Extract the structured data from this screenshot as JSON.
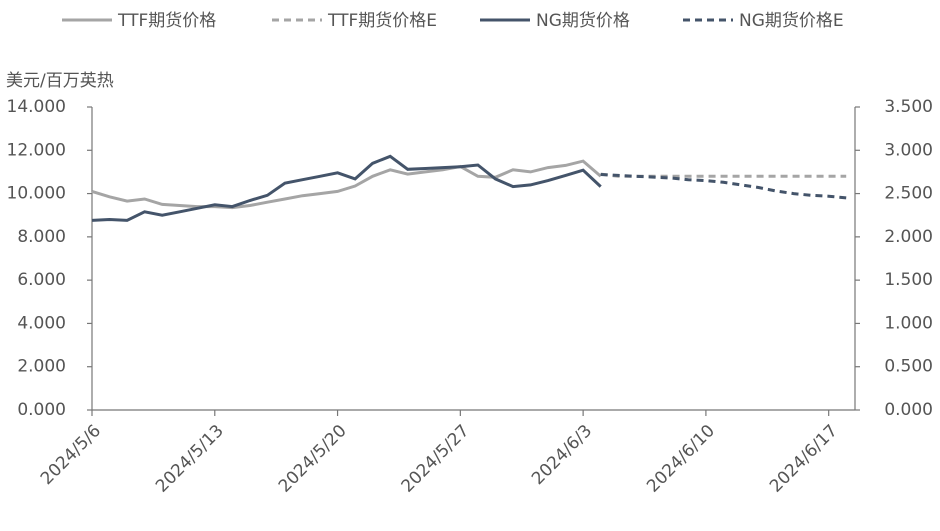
{
  "chart_data": {
    "type": "line",
    "y_label": "美元/百万英热",
    "categories": [
      "2024/5/6",
      null,
      null,
      null,
      null,
      null,
      null,
      "2024/5/13",
      null,
      null,
      null,
      null,
      null,
      null,
      "2024/5/20",
      null,
      null,
      null,
      null,
      null,
      null,
      "2024/5/27",
      null,
      null,
      null,
      null,
      null,
      null,
      "2024/6/3",
      null,
      null,
      null,
      null,
      null,
      null,
      "2024/6/10",
      null,
      null,
      null,
      null,
      null,
      null,
      "2024/6/17",
      null
    ],
    "series": [
      {
        "name": "TTF期货价格",
        "color": "#a5a5a5",
        "dash": false,
        "axis": "y",
        "values": [
          10.1,
          9.85,
          9.65,
          9.75,
          9.5,
          9.45,
          9.4,
          9.4,
          9.35,
          9.45,
          9.6,
          9.75,
          9.9,
          10.0,
          10.1,
          10.35,
          10.8,
          11.1,
          10.9,
          11.0,
          11.1,
          11.25,
          10.8,
          10.75,
          11.1,
          11.0,
          11.2,
          11.3,
          11.5,
          10.8,
          null,
          null,
          null,
          null,
          null,
          null,
          null,
          null,
          null,
          null,
          null,
          null,
          null,
          null
        ]
      },
      {
        "name": "TTF期货价格E",
        "color": "#a5a5a5",
        "dash": true,
        "axis": "y",
        "values": [
          null,
          null,
          null,
          null,
          null,
          null,
          null,
          null,
          null,
          null,
          null,
          null,
          null,
          null,
          null,
          null,
          null,
          null,
          null,
          null,
          null,
          null,
          null,
          null,
          null,
          null,
          null,
          null,
          null,
          10.9,
          10.8,
          10.8,
          10.8,
          10.8,
          10.8,
          10.8,
          10.8,
          10.8,
          10.8,
          10.8,
          10.8,
          10.8,
          10.8,
          10.8
        ]
      },
      {
        "name": "NG期货价格",
        "color": "#44546a",
        "dash": false,
        "axis": "y2",
        "values": [
          2.19,
          2.2,
          2.19,
          2.29,
          2.25,
          2.29,
          2.33,
          2.37,
          2.35,
          2.42,
          2.48,
          2.62,
          2.66,
          2.7,
          2.74,
          2.67,
          2.85,
          2.93,
          2.78,
          2.79,
          2.8,
          2.81,
          2.83,
          2.67,
          2.58,
          2.6,
          2.65,
          2.71,
          2.77,
          2.58,
          null,
          null,
          null,
          null,
          null,
          null,
          null,
          null,
          null,
          null,
          null,
          null,
          null,
          null
        ]
      },
      {
        "name": "NG期货价格E",
        "color": "#44546a",
        "dash": true,
        "axis": "y2",
        "values": [
          null,
          null,
          null,
          null,
          null,
          null,
          null,
          null,
          null,
          null,
          null,
          null,
          null,
          null,
          null,
          null,
          null,
          null,
          null,
          null,
          null,
          null,
          null,
          null,
          null,
          null,
          null,
          null,
          null,
          2.72,
          2.71,
          2.7,
          2.69,
          2.68,
          2.66,
          2.65,
          2.63,
          2.6,
          2.57,
          2.53,
          2.5,
          2.48,
          2.47,
          2.45
        ]
      }
    ],
    "ylim": [
      0,
      14
    ],
    "yticks": [
      {
        "value": 0,
        "label": "0.000"
      },
      {
        "value": 2,
        "label": "2.000"
      },
      {
        "value": 4,
        "label": "4.000"
      },
      {
        "value": 6,
        "label": "6.000"
      },
      {
        "value": 8,
        "label": "8.000"
      },
      {
        "value": 10,
        "label": "10.000"
      },
      {
        "value": 12,
        "label": "12.000"
      },
      {
        "value": 14,
        "label": "14.000"
      }
    ],
    "y2lim": [
      0,
      3.5
    ],
    "y2ticks": [
      {
        "value": 0,
        "label": "0.000"
      },
      {
        "value": 0.5,
        "label": "0.500"
      },
      {
        "value": 1,
        "label": "1.000"
      },
      {
        "value": 1.5,
        "label": "1.500"
      },
      {
        "value": 2,
        "label": "2.000"
      },
      {
        "value": 2.5,
        "label": "2.500"
      },
      {
        "value": 3,
        "label": "3.000"
      },
      {
        "value": 3.5,
        "label": "3.500"
      }
    ],
    "legend": "top"
  }
}
